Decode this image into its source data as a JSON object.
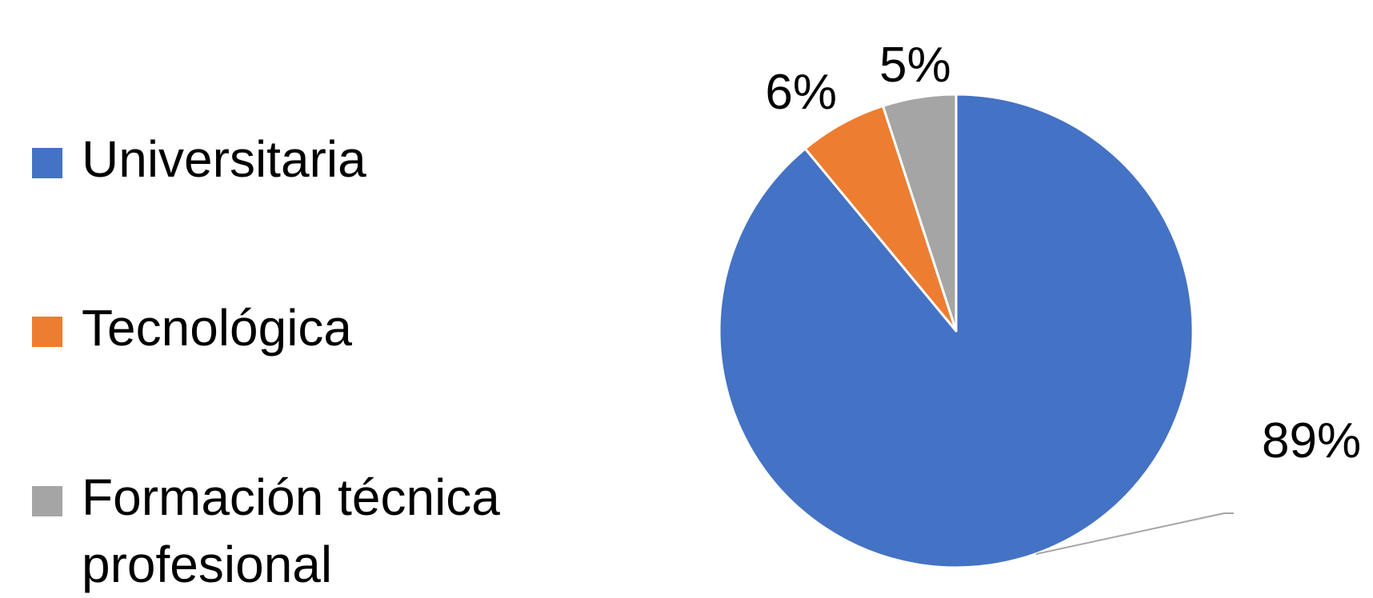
{
  "chart_data": {
    "type": "pie",
    "legend_position": "left",
    "start_angle_deg": 0,
    "direction": "clockwise",
    "slices": [
      {
        "name": "Universitaria",
        "value": 89,
        "label": "89%",
        "color": "#4472C4"
      },
      {
        "name": "Tecnológica",
        "value": 6,
        "label": "6%",
        "color": "#ED7D31"
      },
      {
        "name": "Formación técnica\nprofesional",
        "value": 5,
        "label": "5%",
        "color": "#A5A5A5"
      }
    ]
  }
}
